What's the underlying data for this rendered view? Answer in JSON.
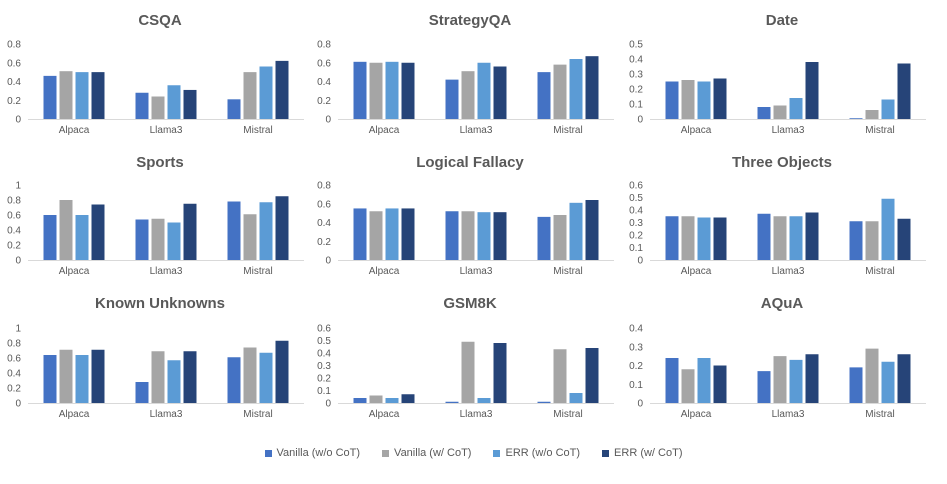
{
  "colors": {
    "vanilla_no_cot": "#4472C4",
    "vanilla_cot": "#A5A5A5",
    "err_no_cot": "#5B9BD5",
    "err_cot": "#264478",
    "axis": "#D9D9D9",
    "gridline": "#D9D9D9"
  },
  "legend": [
    {
      "label": "Vanilla (w/o CoT)",
      "color": "#4472C4"
    },
    {
      "label": "Vanilla (w/ CoT)",
      "color": "#A5A5A5"
    },
    {
      "label": "ERR (w/o CoT)",
      "color": "#5B9BD5"
    },
    {
      "label": "ERR (w/ CoT)",
      "color": "#264478"
    }
  ],
  "chart_data": [
    {
      "type": "bar",
      "title": "CSQA",
      "categories": [
        "Alpaca",
        "Llama3",
        "Mistral"
      ],
      "ylim": [
        0,
        0.8
      ],
      "yticks": [
        "0",
        "0.2",
        "0.4",
        "0.6",
        "0.8"
      ],
      "grid": false,
      "series": [
        {
          "name": "Vanilla (w/o CoT)",
          "values": [
            0.46,
            0.28,
            0.21
          ]
        },
        {
          "name": "Vanilla (w/ CoT)",
          "values": [
            0.51,
            0.24,
            0.5
          ]
        },
        {
          "name": "ERR (w/o CoT)",
          "values": [
            0.5,
            0.36,
            0.56
          ]
        },
        {
          "name": "ERR (w/ CoT)",
          "values": [
            0.5,
            0.31,
            0.62
          ]
        }
      ]
    },
    {
      "type": "bar",
      "title": "StrategyQA",
      "categories": [
        "Alpaca",
        "Llama3",
        "Mistral"
      ],
      "ylim": [
        0,
        0.8
      ],
      "yticks": [
        "0",
        "0.2",
        "0.4",
        "0.6",
        "0.8"
      ],
      "grid": false,
      "series": [
        {
          "name": "Vanilla (w/o CoT)",
          "values": [
            0.61,
            0.42,
            0.5
          ]
        },
        {
          "name": "Vanilla (w/ CoT)",
          "values": [
            0.6,
            0.51,
            0.58
          ]
        },
        {
          "name": "ERR (w/o CoT)",
          "values": [
            0.61,
            0.6,
            0.64
          ]
        },
        {
          "name": "ERR (w/ CoT)",
          "values": [
            0.6,
            0.56,
            0.67
          ]
        }
      ]
    },
    {
      "type": "bar",
      "title": "Date",
      "categories": [
        "Alpaca",
        "Llama3",
        "Mistral"
      ],
      "ylim": [
        0,
        0.5
      ],
      "yticks": [
        "0",
        "0.1",
        "0.2",
        "0.3",
        "0.4",
        "0.5"
      ],
      "grid": false,
      "series": [
        {
          "name": "Vanilla (w/o CoT)",
          "values": [
            0.25,
            0.08,
            0.005
          ]
        },
        {
          "name": "Vanilla (w/ CoT)",
          "values": [
            0.26,
            0.09,
            0.06
          ]
        },
        {
          "name": "ERR (w/o CoT)",
          "values": [
            0.25,
            0.14,
            0.13
          ]
        },
        {
          "name": "ERR (w/ CoT)",
          "values": [
            0.27,
            0.38,
            0.37
          ]
        }
      ]
    },
    {
      "type": "bar",
      "title": "Sports",
      "categories": [
        "Alpaca",
        "Llama3",
        "Mistral"
      ],
      "ylim": [
        0,
        1
      ],
      "yticks": [
        "0",
        "0.2",
        "0.4",
        "0.6",
        "0.8",
        "1"
      ],
      "grid": false,
      "series": [
        {
          "name": "Vanilla (w/o CoT)",
          "values": [
            0.6,
            0.54,
            0.78
          ]
        },
        {
          "name": "Vanilla (w/ CoT)",
          "values": [
            0.8,
            0.55,
            0.61
          ]
        },
        {
          "name": "ERR (w/o CoT)",
          "values": [
            0.6,
            0.5,
            0.77
          ]
        },
        {
          "name": "ERR (w/ CoT)",
          "values": [
            0.74,
            0.75,
            0.85
          ]
        }
      ]
    },
    {
      "type": "bar",
      "title": "Logical Fallacy",
      "categories": [
        "Alpaca",
        "Llama3",
        "Mistral"
      ],
      "ylim": [
        0,
        0.8
      ],
      "yticks": [
        "0",
        "0.2",
        "0.4",
        "0.6",
        "0.8"
      ],
      "grid": false,
      "series": [
        {
          "name": "Vanilla (w/o CoT)",
          "values": [
            0.55,
            0.52,
            0.46
          ]
        },
        {
          "name": "Vanilla (w/ CoT)",
          "values": [
            0.52,
            0.52,
            0.48
          ]
        },
        {
          "name": "ERR (w/o CoT)",
          "values": [
            0.55,
            0.51,
            0.61
          ]
        },
        {
          "name": "ERR (w/ CoT)",
          "values": [
            0.55,
            0.51,
            0.64
          ]
        }
      ]
    },
    {
      "type": "bar",
      "title": "Three Objects",
      "categories": [
        "Alpaca",
        "Llama3",
        "Mistral"
      ],
      "ylim": [
        0,
        0.6
      ],
      "yticks": [
        "0",
        "0.1",
        "0.2",
        "0.3",
        "0.4",
        "0.5",
        "0.6"
      ],
      "grid": false,
      "series": [
        {
          "name": "Vanilla (w/o CoT)",
          "values": [
            0.35,
            0.37,
            0.31
          ]
        },
        {
          "name": "Vanilla (w/ CoT)",
          "values": [
            0.35,
            0.35,
            0.31
          ]
        },
        {
          "name": "ERR (w/o CoT)",
          "values": [
            0.34,
            0.35,
            0.49
          ]
        },
        {
          "name": "ERR (w/ CoT)",
          "values": [
            0.34,
            0.38,
            0.33
          ]
        }
      ]
    },
    {
      "type": "bar",
      "title": "Known Unknowns",
      "categories": [
        "Alpaca",
        "Llama3",
        "Mistral"
      ],
      "ylim": [
        0,
        1
      ],
      "yticks": [
        "0",
        "0.2",
        "0.4",
        "0.6",
        "0.8",
        "1"
      ],
      "grid": false,
      "series": [
        {
          "name": "Vanilla (w/o CoT)",
          "values": [
            0.64,
            0.28,
            0.61
          ]
        },
        {
          "name": "Vanilla (w/ CoT)",
          "values": [
            0.71,
            0.69,
            0.74
          ]
        },
        {
          "name": "ERR (w/o CoT)",
          "values": [
            0.64,
            0.57,
            0.67
          ]
        },
        {
          "name": "ERR (w/ CoT)",
          "values": [
            0.71,
            0.69,
            0.83
          ]
        }
      ]
    },
    {
      "type": "bar",
      "title": "GSM8K",
      "categories": [
        "Alpaca",
        "Llama3",
        "Mistral"
      ],
      "ylim": [
        0,
        0.6
      ],
      "yticks": [
        "0",
        "0.1",
        "0.2",
        "0.3",
        "0.4",
        "0.5",
        "0.6"
      ],
      "grid": false,
      "series": [
        {
          "name": "Vanilla (w/o CoT)",
          "values": [
            0.04,
            0.01,
            0.01
          ]
        },
        {
          "name": "Vanilla (w/ CoT)",
          "values": [
            0.06,
            0.49,
            0.43
          ]
        },
        {
          "name": "ERR (w/o CoT)",
          "values": [
            0.04,
            0.04,
            0.08
          ]
        },
        {
          "name": "ERR (w/ CoT)",
          "values": [
            0.07,
            0.48,
            0.44
          ]
        }
      ]
    },
    {
      "type": "bar",
      "title": "AQuA",
      "categories": [
        "Alpaca",
        "Llama3",
        "Mistral"
      ],
      "ylim": [
        0,
        0.4
      ],
      "yticks": [
        "0",
        "0.1",
        "0.2",
        "0.3",
        "0.4"
      ],
      "grid": false,
      "series": [
        {
          "name": "Vanilla (w/o CoT)",
          "values": [
            0.24,
            0.17,
            0.19
          ]
        },
        {
          "name": "Vanilla (w/ CoT)",
          "values": [
            0.18,
            0.25,
            0.29
          ]
        },
        {
          "name": "ERR (w/o CoT)",
          "values": [
            0.24,
            0.23,
            0.22
          ]
        },
        {
          "name": "ERR (w/ CoT)",
          "values": [
            0.2,
            0.26,
            0.26
          ]
        }
      ]
    }
  ]
}
